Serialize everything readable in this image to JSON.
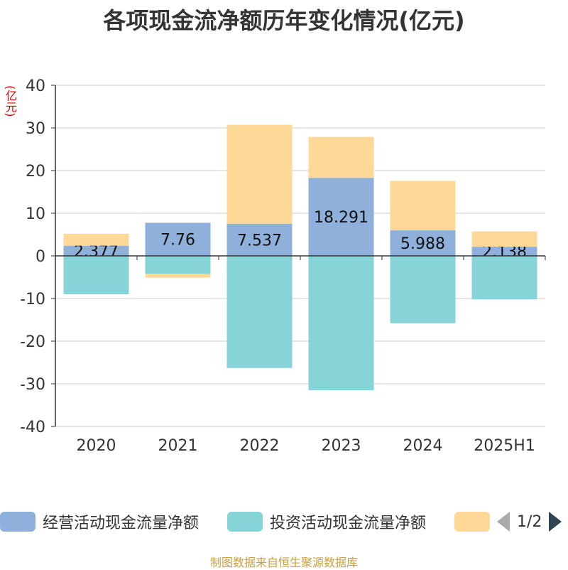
{
  "page": {
    "title": "各项现金流净额历年变化情况(亿元)",
    "unit": "(亿元)",
    "source": "制图数据来自恒生聚源数据库",
    "pager": "1/2"
  },
  "chart_data": {
    "type": "bar",
    "stacked": true,
    "title": "各项现金流净额历年变化情况(亿元)",
    "ylabel": "(亿元)",
    "categories": [
      "2020",
      "2021",
      "2022",
      "2023",
      "2024",
      "2025H1"
    ],
    "ylim": [
      -40,
      40
    ],
    "yticks": [
      40,
      30,
      20,
      10,
      0,
      -10,
      -20,
      -30,
      -40
    ],
    "grid": true,
    "legend_position": "bottom",
    "series": [
      {
        "name": "经营活动现金流量净额",
        "color": "#8eb0da",
        "values": [
          2.377,
          7.76,
          7.537,
          18.291,
          5.988,
          2.138
        ],
        "show_labels": true
      },
      {
        "name": "投资活动现金流量净额",
        "color": "#86d4d8",
        "values": [
          -9.0,
          -4.2,
          -26.3,
          -31.5,
          -15.8,
          -10.2
        ],
        "show_labels": false
      },
      {
        "name": "",
        "color": "#fdd896",
        "values": [
          2.8,
          -0.9,
          23.2,
          9.6,
          11.6,
          3.6
        ],
        "show_labels": false
      }
    ]
  }
}
